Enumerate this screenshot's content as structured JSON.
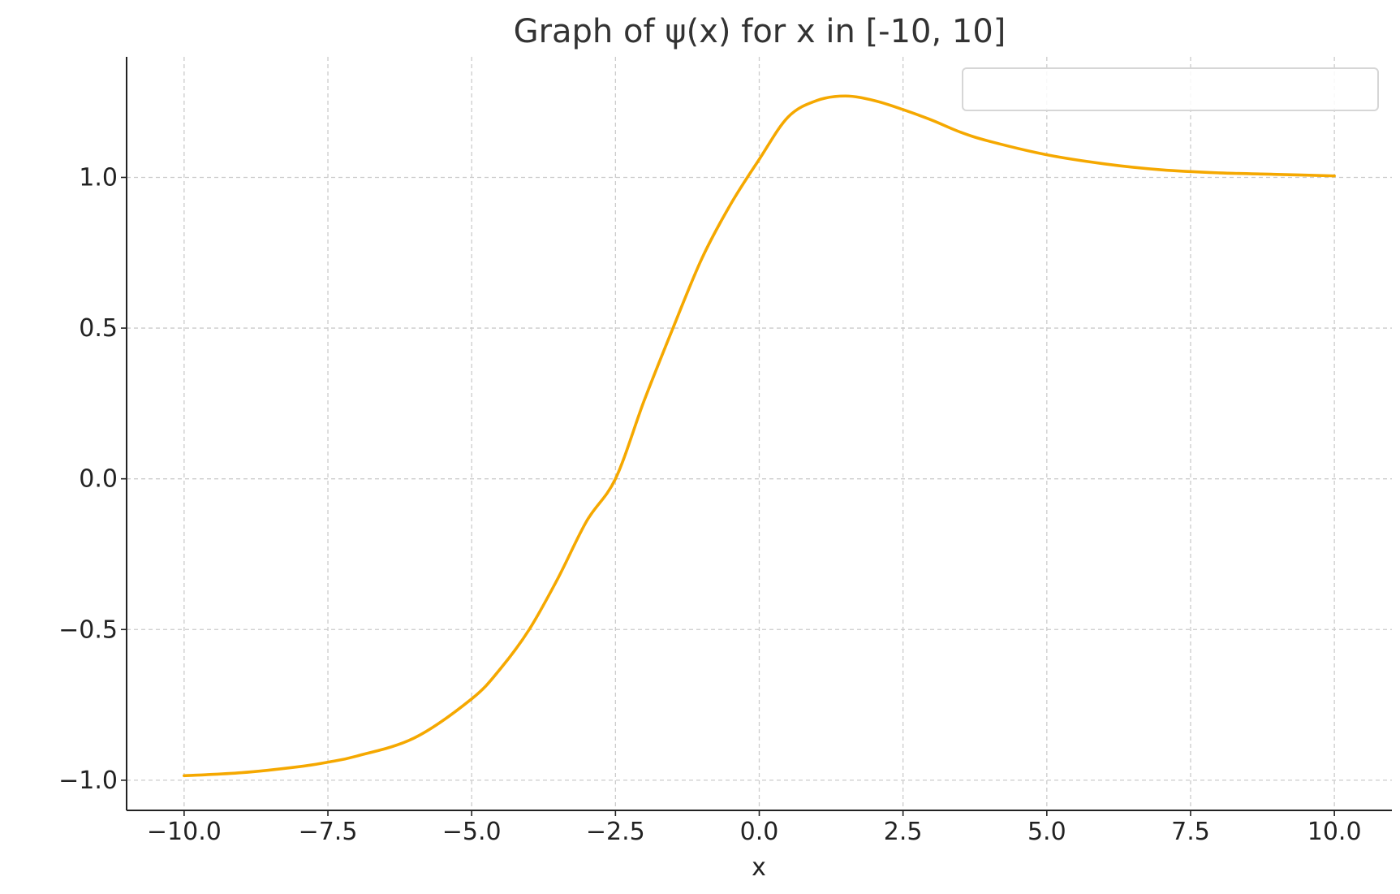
{
  "chart_data": {
    "type": "line",
    "title": "Graph of ψ(x) for x in [-10, 10]",
    "xlabel": "x",
    "ylabel": "",
    "xlim": [
      -11,
      11
    ],
    "ylim": [
      -1.1,
      1.4
    ],
    "xticks": [
      -10.0,
      -7.5,
      -5.0,
      -2.5,
      0.0,
      2.5,
      5.0,
      7.5,
      10.0
    ],
    "xtick_labels": [
      "−10.0",
      "−7.5",
      "−5.0",
      "−2.5",
      "0.0",
      "2.5",
      "5.0",
      "7.5",
      "10.0"
    ],
    "yticks": [
      -1.0,
      -0.5,
      0.0,
      0.5,
      1.0
    ],
    "ytick_labels": [
      "−1.0",
      "−0.5",
      "0.0",
      "0.5",
      "1.0"
    ],
    "grid": true,
    "legend": {
      "placement": "top-right",
      "entries": []
    },
    "series": [
      {
        "color": "#f5a800",
        "x": [
          -10,
          -9,
          -8,
          -7.5,
          -7,
          -6,
          -5,
          -4.5,
          -4,
          -3.5,
          -3,
          -2.5,
          -2,
          -1.5,
          -1,
          -0.5,
          0,
          0.5,
          1,
          1.5,
          2,
          2.5,
          3,
          3.5,
          4,
          5,
          6,
          7,
          8,
          9,
          10
        ],
        "y": [
          -0.985,
          -0.975,
          -0.955,
          -0.94,
          -0.92,
          -0.86,
          -0.73,
          -0.63,
          -0.5,
          -0.33,
          -0.14,
          0.0,
          0.26,
          0.5,
          0.73,
          0.91,
          1.06,
          1.2,
          1.255,
          1.27,
          1.255,
          1.225,
          1.19,
          1.15,
          1.12,
          1.075,
          1.045,
          1.025,
          1.015,
          1.01,
          1.005
        ]
      }
    ]
  }
}
